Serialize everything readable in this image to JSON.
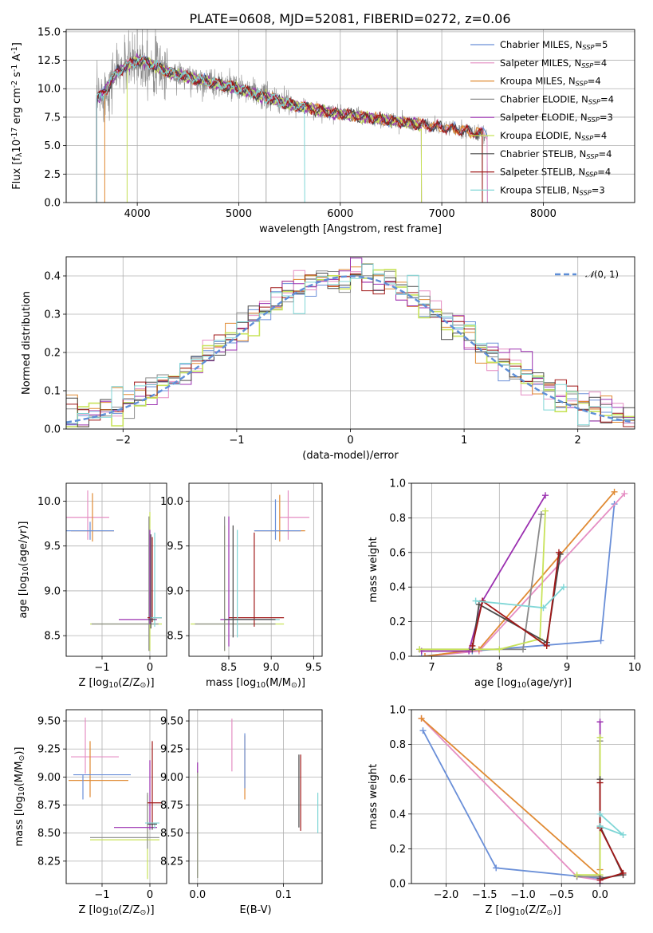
{
  "figure": {
    "title": "PLATE=0608, MJD=52081, FIBERID=0272, z=0.06"
  },
  "colors": {
    "Chabrier MILES": "#6a8fd8",
    "Salpeter MILES": "#e58ec3",
    "Kroupa MILES": "#e08a33",
    "Chabrier ELODIE": "#8a8a8a",
    "Salpeter ELODIE": "#9b30b0",
    "Kroupa ELODIE": "#c8e35a",
    "Chabrier STELIB": "#4a4a4a",
    "Salpeter STELIB": "#a01818",
    "Kroupa STELIB": "#7fd6d6"
  },
  "chart_data": [
    {
      "id": "spectrum",
      "type": "line",
      "title": "PLATE=0608, MJD=52081, FIBERID=0272, z=0.06",
      "xlabel": "wavelength [Angstrom, rest frame]",
      "ylabel": "Flux [f$_\\lambda$10$^{-17}$ erg cm$^{-2}$ s$^{-1}$ A$^{-1}$]",
      "xlim": [
        3300,
        8900
      ],
      "ylim": [
        0,
        15.2
      ],
      "xticks": [
        "4000",
        "5000",
        "6000",
        "7000",
        "8000"
      ],
      "yticks": [
        "0.0",
        "2.5",
        "5.0",
        "7.5",
        "10.0",
        "12.5",
        "15.0"
      ],
      "legend_loc": "upper right",
      "legend": [
        {
          "name": "Chabrier MILES",
          "nssp": "5"
        },
        {
          "name": "Salpeter MILES",
          "nssp": "4"
        },
        {
          "name": "Kroupa MILES",
          "nssp": "4"
        },
        {
          "name": "Chabrier ELODIE",
          "nssp": "4"
        },
        {
          "name": "Salpeter ELODIE",
          "nssp": "3"
        },
        {
          "name": "Kroupa ELODIE",
          "nssp": "4"
        },
        {
          "name": "Chabrier STELIB",
          "nssp": "4"
        },
        {
          "name": "Salpeter STELIB",
          "nssp": "4"
        },
        {
          "name": "Kroupa STELIB",
          "nssp": "3"
        }
      ],
      "data_continuum": {
        "x": [
          3600,
          3700,
          3800,
          3900,
          4000,
          4100,
          4300,
          4500,
          5000,
          5500,
          6000,
          6500,
          7000,
          7500
        ],
        "y": [
          9.0,
          10.0,
          11.5,
          12.0,
          12.5,
          12.3,
          11.5,
          11.0,
          10.0,
          8.6,
          7.8,
          7.2,
          6.6,
          5.9
        ]
      },
      "model_range": {
        "Chabrier MILES": [
          3600,
          7450
        ],
        "Salpeter MILES": [
          3600,
          7450
        ],
        "Kroupa MILES": [
          3680,
          7400
        ],
        "Chabrier ELODIE": [
          3600,
          6800
        ],
        "Salpeter ELODIE": [
          3600,
          6800
        ],
        "Kroupa ELODIE": [
          3900,
          6800
        ],
        "Chabrier STELIB": [
          3600,
          7400
        ],
        "Salpeter STELIB": [
          3600,
          7400
        ],
        "Kroupa STELIB": [
          3600,
          5650
        ]
      }
    },
    {
      "id": "residuals",
      "type": "line",
      "xlabel": "(data-model)/error",
      "ylabel": "Normed distribution",
      "xlim": [
        -2.5,
        2.5
      ],
      "ylim": [
        0,
        0.45
      ],
      "xticks": [
        "−2",
        "−1",
        "0",
        "1",
        "2"
      ],
      "yticks": [
        "0.0",
        "0.1",
        "0.2",
        "0.3",
        "0.4"
      ],
      "legend_loc": "upper right",
      "legend": [
        "$\\mathcal{N}$(0, 1)"
      ],
      "normal": {
        "mu": 0,
        "sigma": 1
      }
    },
    {
      "id": "age-vs-Z",
      "type": "scatter",
      "xlabel": "Z [log$_{10}$(Z/Z$_\\odot$)]",
      "ylabel": "age  [log$_{10}$(age/yr)]",
      "xlim": [
        -1.75,
        0.35
      ],
      "ylim": [
        8.27,
        10.2
      ],
      "xticks": [
        "−1",
        "0"
      ],
      "yticks": [
        "8.5",
        "9.0",
        "9.5",
        "10.0"
      ],
      "points": [
        {
          "series": "Salpeter MILES",
          "x": -1.3,
          "y": 9.82,
          "xerr": [
            0.45,
            0.45
          ],
          "yerr": [
            0.25,
            0.3
          ]
        },
        {
          "series": "Kroupa MILES",
          "x": -1.2,
          "y": 9.67,
          "xerr": [
            0.45,
            0.45
          ],
          "yerr": [
            0.12,
            0.42
          ]
        },
        {
          "series": "Chabrier MILES",
          "x": -1.25,
          "y": 9.67,
          "xerr": [
            0.5,
            0.5
          ],
          "yerr": [
            0.1,
            0.1
          ]
        },
        {
          "series": "Kroupa ELODIE",
          "x": 0.0,
          "y": 8.63,
          "xerr": [
            1.25,
            0.25
          ],
          "yerr": [
            0.3,
            1.25
          ]
        },
        {
          "series": "Chabrier ELODIE",
          "x": -0.02,
          "y": 8.63,
          "xerr": [
            1.2,
            0.2
          ],
          "yerr": [
            0.3,
            1.2
          ]
        },
        {
          "series": "Salpeter ELODIE",
          "x": 0.0,
          "y": 8.68,
          "xerr": [
            0.65,
            0.15
          ],
          "yerr": [
            0.05,
            1.0
          ]
        },
        {
          "series": "Salpeter STELIB",
          "x": 0.05,
          "y": 8.7,
          "xerr": [
            0.1,
            0.2
          ],
          "yerr": [
            0.05,
            0.9
          ]
        },
        {
          "series": "Kroupa STELIB",
          "x": 0.1,
          "y": 8.7,
          "xerr": [
            0.1,
            0.15
          ],
          "yerr": [
            0.1,
            0.95
          ]
        },
        {
          "series": "Chabrier STELIB",
          "x": 0.02,
          "y": 8.68,
          "xerr": [
            0.05,
            0.1
          ],
          "yerr": [
            0.1,
            0.95
          ]
        }
      ]
    },
    {
      "id": "age-vs-mass",
      "type": "scatter",
      "xlabel": "mass [log$_{10}$(M/M$_\\odot$)]",
      "ylabel": "",
      "xlim": [
        8.03,
        9.6
      ],
      "ylim": [
        8.27,
        10.2
      ],
      "xticks": [
        "8.5",
        "9.0",
        "9.5"
      ],
      "yticks": [
        "8.5",
        "9.0",
        "9.5",
        "10.0"
      ],
      "points": [
        {
          "series": "Salpeter MILES",
          "x": 9.2,
          "y": 9.82,
          "xerr": [
            0.1,
            0.25
          ],
          "yerr": [
            0.25,
            0.3
          ]
        },
        {
          "series": "Kroupa MILES",
          "x": 9.1,
          "y": 9.67,
          "xerr": [
            0.3,
            0.3
          ],
          "yerr": [
            0.12,
            0.4
          ]
        },
        {
          "series": "Chabrier MILES",
          "x": 9.05,
          "y": 9.67,
          "xerr": [
            0.25,
            0.3
          ],
          "yerr": [
            0.1,
            0.35
          ]
        },
        {
          "series": "Kroupa ELODIE",
          "x": 8.45,
          "y": 8.63,
          "xerr": [
            0.4,
            0.7
          ],
          "yerr": [
            0.3,
            1.1
          ]
        },
        {
          "series": "Chabrier ELODIE",
          "x": 8.45,
          "y": 8.63,
          "xerr": [
            0.35,
            0.6
          ],
          "yerr": [
            0.3,
            1.2
          ]
        },
        {
          "series": "Salpeter ELODIE",
          "x": 8.5,
          "y": 8.68,
          "xerr": [
            0.1,
            0.5
          ],
          "yerr": [
            0.3,
            1.15
          ]
        },
        {
          "series": "Salpeter STELIB",
          "x": 8.8,
          "y": 8.7,
          "xerr": [
            0.3,
            0.35
          ],
          "yerr": [
            0.1,
            0.95
          ]
        },
        {
          "series": "Kroupa STELIB",
          "x": 8.6,
          "y": 8.68,
          "xerr": [
            0.15,
            0.5
          ],
          "yerr": [
            0.2,
            1.0
          ]
        },
        {
          "series": "Chabrier STELIB",
          "x": 8.55,
          "y": 8.68,
          "xerr": [
            0.1,
            0.5
          ],
          "yerr": [
            0.2,
            1.05
          ]
        }
      ]
    },
    {
      "id": "mass-weight-vs-age",
      "type": "line",
      "xlabel": "age  [log$_{10}$(age/yr)]",
      "ylabel": "mass weight",
      "xlim": [
        6.7,
        10.0
      ],
      "ylim": [
        0,
        1.0
      ],
      "xticks": [
        "7",
        "8",
        "9",
        "10"
      ],
      "yticks": [
        "0.0",
        "0.2",
        "0.4",
        "0.6",
        "0.8",
        "1.0"
      ],
      "series": [
        {
          "name": "Chabrier MILES",
          "x": [
            6.85,
            7.6,
            9.5,
            9.7
          ],
          "y": [
            0.0,
            0.03,
            0.09,
            0.88
          ]
        },
        {
          "name": "Salpeter MILES",
          "x": [
            6.9,
            7.7,
            9.85
          ],
          "y": [
            0.0,
            0.03,
            0.94
          ]
        },
        {
          "name": "Kroupa MILES",
          "x": [
            6.9,
            7.7,
            9.7
          ],
          "y": [
            0.0,
            0.04,
            0.95
          ]
        },
        {
          "name": "Chabrier ELODIE",
          "x": [
            6.82,
            8.35,
            8.62
          ],
          "y": [
            0.04,
            0.04,
            0.82
          ]
        },
        {
          "name": "Salpeter ELODIE",
          "x": [
            6.85,
            7.55,
            7.75,
            8.68
          ],
          "y": [
            0.03,
            0.03,
            0.32,
            0.93
          ]
        },
        {
          "name": "Kroupa ELODIE",
          "x": [
            6.82,
            8.0,
            8.6,
            8.68
          ],
          "y": [
            0.04,
            0.04,
            0.1,
            0.84
          ]
        },
        {
          "name": "Chabrier STELIB",
          "x": [
            7.6,
            7.7,
            8.7,
            8.9
          ],
          "y": [
            0.04,
            0.3,
            0.08,
            0.59
          ]
        },
        {
          "name": "Salpeter STELIB",
          "x": [
            7.6,
            7.75,
            8.7,
            8.88
          ],
          "y": [
            0.06,
            0.32,
            0.06,
            0.6
          ]
        },
        {
          "name": "Kroupa STELIB",
          "x": [
            7.65,
            8.65,
            8.95
          ],
          "y": [
            0.32,
            0.28,
            0.4
          ]
        }
      ]
    },
    {
      "id": "mass-vs-Z",
      "type": "scatter",
      "xlabel": "Z [log$_{10}$(Z/Z$_\\odot$)]",
      "ylabel": "mass [log$_{10}$(M/M$_\\odot$)]",
      "xlim": [
        -1.75,
        0.35
      ],
      "ylim": [
        8.05,
        9.6
      ],
      "xticks": [
        "−1",
        "0"
      ],
      "yticks": [
        "8.25",
        "8.50",
        "8.75",
        "9.00",
        "9.25",
        "9.50"
      ],
      "points": [
        {
          "series": "Salpeter MILES",
          "x": -1.35,
          "y": 9.18,
          "xerr": [
            0.3,
            0.7
          ],
          "yerr": [
            0.15,
            0.35
          ]
        },
        {
          "series": "Kroupa MILES",
          "x": -1.25,
          "y": 8.97,
          "xerr": [
            0.45,
            0.8
          ],
          "yerr": [
            0.15,
            0.35
          ]
        },
        {
          "series": "Chabrier MILES",
          "x": -1.4,
          "y": 9.02,
          "xerr": [
            0.2,
            1.0
          ],
          "yerr": [
            0.22,
            0.0
          ]
        },
        {
          "series": "Kroupa ELODIE",
          "x": -0.05,
          "y": 8.44,
          "xerr": [
            1.2,
            0.25
          ],
          "yerr": [
            0.35,
            0.4
          ]
        },
        {
          "series": "Chabrier ELODIE",
          "x": -0.05,
          "y": 8.46,
          "xerr": [
            1.2,
            0.25
          ],
          "yerr": [
            0.1,
            0.4
          ]
        },
        {
          "series": "Salpeter ELODIE",
          "x": 0.0,
          "y": 8.55,
          "xerr": [
            0.75,
            0.15
          ],
          "yerr": [
            0.02,
            0.6
          ]
        },
        {
          "series": "Salpeter STELIB",
          "x": 0.05,
          "y": 8.77,
          "xerr": [
            0.1,
            0.2
          ],
          "yerr": [
            0.2,
            0.55
          ]
        },
        {
          "series": "Kroupa STELIB",
          "x": 0.1,
          "y": 8.59,
          "xerr": [
            0.2,
            0.1
          ],
          "yerr": [
            0.05,
            0.0
          ]
        },
        {
          "series": "Chabrier STELIB",
          "x": 0.05,
          "y": 8.58,
          "xerr": [
            0.1,
            0.1
          ],
          "yerr": [
            0.05,
            0.0
          ]
        }
      ]
    },
    {
      "id": "mass-vs-EBV",
      "type": "scatter",
      "xlabel": "E(B-V)",
      "ylabel": "",
      "xlim": [
        -0.01,
        0.145
      ],
      "ylim": [
        8.05,
        9.6
      ],
      "xticks": [
        "0.0",
        "0.1"
      ],
      "yticks": [
        "8.25",
        "8.50",
        "8.75",
        "9.00",
        "9.25",
        "9.50"
      ],
      "points": [
        {
          "series": "Salpeter MILES",
          "x": 0.04,
          "y": 9.25,
          "xerr": [
            0,
            0
          ],
          "yerr": [
            0.2,
            0.27
          ]
        },
        {
          "series": "Kroupa MILES",
          "x": 0.055,
          "y": 9.07,
          "xerr": [
            0,
            0
          ],
          "yerr": [
            0.27,
            0.3
          ]
        },
        {
          "series": "Chabrier MILES",
          "x": 0.055,
          "y": 9.1,
          "xerr": [
            0,
            0
          ],
          "yerr": [
            0.2,
            0.29
          ]
        },
        {
          "series": "Kroupa ELODIE",
          "x": 0.0,
          "y": 8.6,
          "xerr": [
            0,
            0
          ],
          "yerr": [
            0.5,
            0.45
          ]
        },
        {
          "series": "Chabrier ELODIE",
          "x": 0.0,
          "y": 8.6,
          "xerr": [
            0,
            0
          ],
          "yerr": [
            0.5,
            0.45
          ]
        },
        {
          "series": "Salpeter ELODIE",
          "x": 0.0,
          "y": 9.08,
          "xerr": [
            0,
            0
          ],
          "yerr": [
            0.04,
            0.05
          ]
        },
        {
          "series": "Salpeter STELIB",
          "x": 0.12,
          "y": 8.9,
          "xerr": [
            0,
            0
          ],
          "yerr": [
            0.38,
            0.3
          ]
        },
        {
          "series": "Kroupa STELIB",
          "x": 0.14,
          "y": 8.68,
          "xerr": [
            0,
            0
          ],
          "yerr": [
            0.18,
            0.18
          ]
        },
        {
          "series": "Chabrier STELIB",
          "x": 0.118,
          "y": 8.85,
          "xerr": [
            0,
            0
          ],
          "yerr": [
            0.3,
            0.35
          ]
        }
      ]
    },
    {
      "id": "mass-weight-vs-Z",
      "type": "line",
      "xlabel": "Z [log$_{10}$(Z/Z$_\\odot$)]",
      "ylabel": "mass weight",
      "xlim": [
        -2.45,
        0.45
      ],
      "ylim": [
        0,
        1.0
      ],
      "xticks": [
        "−2.0",
        "−1.5",
        "−1.0",
        "−0.5",
        "0.0"
      ],
      "yticks": [
        "0.0",
        "0.2",
        "0.4",
        "0.6",
        "0.8",
        "1.0"
      ],
      "series": [
        {
          "name": "Chabrier MILES",
          "x": [
            -2.3,
            -1.35,
            0.0
          ],
          "y": [
            0.88,
            0.09,
            0.03
          ]
        },
        {
          "name": "Salpeter MILES",
          "x": [
            -2.32,
            -0.3,
            0.0
          ],
          "y": [
            0.95,
            0.04,
            0.02
          ]
        },
        {
          "name": "Kroupa MILES",
          "x": [
            -2.32,
            0.0,
            0.0
          ],
          "y": [
            0.95,
            0.04,
            0.08
          ]
        },
        {
          "name": "Chabrier ELODIE",
          "x": [
            -0.3,
            0.0,
            0.0
          ],
          "y": [
            0.04,
            0.04,
            0.82
          ]
        },
        {
          "name": "Salpeter ELODIE",
          "x": [
            0.0,
            0.0
          ],
          "y": [
            0.93,
            0.0
          ]
        },
        {
          "name": "Kroupa ELODIE",
          "x": [
            -0.3,
            0.0,
            0.0
          ],
          "y": [
            0.05,
            0.05,
            0.84
          ]
        },
        {
          "name": "Chabrier STELIB",
          "x": [
            0.0,
            0.3,
            0.0,
            0.0
          ],
          "y": [
            0.03,
            0.05,
            0.33,
            0.6
          ]
        },
        {
          "name": "Salpeter STELIB",
          "x": [
            0.0,
            0.3,
            0.0,
            0.0
          ],
          "y": [
            0.02,
            0.06,
            0.32,
            0.58
          ]
        },
        {
          "name": "Kroupa STELIB",
          "x": [
            0.0,
            0.3,
            0.0
          ],
          "y": [
            0.4,
            0.28,
            0.33
          ]
        }
      ]
    }
  ]
}
